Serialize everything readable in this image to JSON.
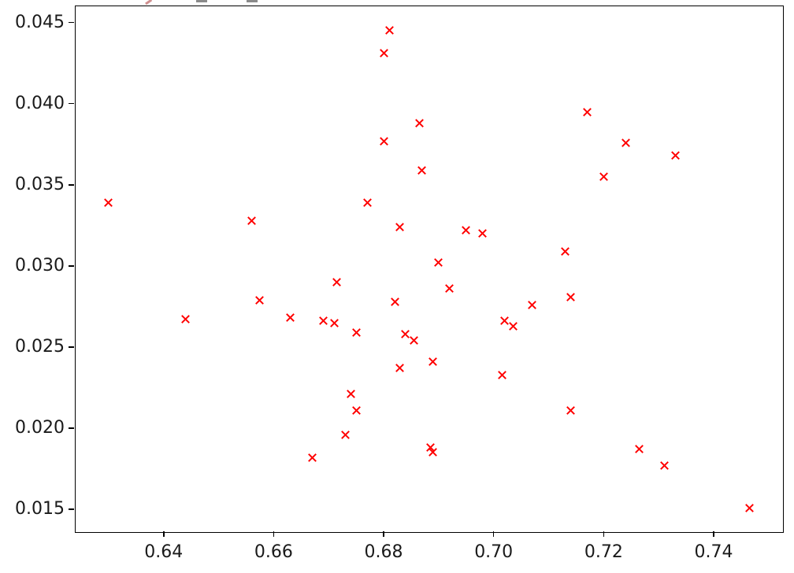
{
  "figure": {
    "background_color": "#ffffff",
    "axis_color": "#000000",
    "tick_label_color": "#1a1a1a"
  },
  "chart_data": {
    "type": "scatter",
    "title": "",
    "xlabel": "",
    "ylabel": "",
    "grid": false,
    "legend": null,
    "marker": "x",
    "marker_color": "#ff0000",
    "xlim": [
      0.624,
      0.7526
    ],
    "ylim": [
      0.0136,
      0.046
    ],
    "x_ticks": {
      "values": [
        0.64,
        0.66,
        0.68,
        0.7,
        0.72,
        0.74
      ],
      "labels": [
        "0.64",
        "0.66",
        "0.68",
        "0.70",
        "0.72",
        "0.74"
      ]
    },
    "y_ticks": {
      "values": [
        0.015,
        0.02,
        0.025,
        0.03,
        0.035,
        0.04,
        0.045
      ],
      "labels": [
        "0.015",
        "0.020",
        "0.025",
        "0.030",
        "0.035",
        "0.040",
        "0.045"
      ]
    },
    "points": [
      [
        0.681,
        0.0445
      ],
      [
        0.68,
        0.0431
      ],
      [
        0.717,
        0.0395
      ],
      [
        0.6865,
        0.0388
      ],
      [
        0.68,
        0.0377
      ],
      [
        0.724,
        0.0376
      ],
      [
        0.733,
        0.0368
      ],
      [
        0.687,
        0.0359
      ],
      [
        0.72,
        0.0355
      ],
      [
        0.63,
        0.0339
      ],
      [
        0.677,
        0.0339
      ],
      [
        0.656,
        0.0328
      ],
      [
        0.683,
        0.0324
      ],
      [
        0.695,
        0.0322
      ],
      [
        0.698,
        0.032
      ],
      [
        0.713,
        0.0309
      ],
      [
        0.69,
        0.0302
      ],
      [
        0.6715,
        0.029
      ],
      [
        0.692,
        0.0286
      ],
      [
        0.714,
        0.0281
      ],
      [
        0.6575,
        0.0279
      ],
      [
        0.682,
        0.0278
      ],
      [
        0.707,
        0.0276
      ],
      [
        0.663,
        0.0268
      ],
      [
        0.644,
        0.0267
      ],
      [
        0.669,
        0.0266
      ],
      [
        0.702,
        0.0266
      ],
      [
        0.671,
        0.0265
      ],
      [
        0.7035,
        0.0263
      ],
      [
        0.675,
        0.0259
      ],
      [
        0.684,
        0.0258
      ],
      [
        0.6855,
        0.0254
      ],
      [
        0.689,
        0.0241
      ],
      [
        0.683,
        0.0237
      ],
      [
        0.7015,
        0.0233
      ],
      [
        0.674,
        0.0221
      ],
      [
        0.675,
        0.0211
      ],
      [
        0.714,
        0.0211
      ],
      [
        0.673,
        0.0196
      ],
      [
        0.6885,
        0.0188
      ],
      [
        0.689,
        0.0185
      ],
      [
        0.7265,
        0.0187
      ],
      [
        0.667,
        0.0182
      ],
      [
        0.731,
        0.0177
      ],
      [
        0.7465,
        0.0151
      ]
    ]
  }
}
